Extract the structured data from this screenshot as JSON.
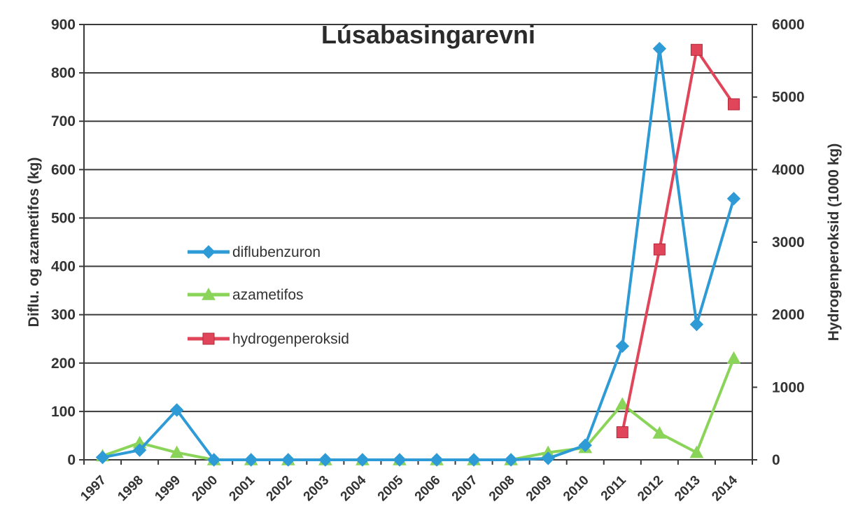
{
  "chart_data": {
    "type": "line",
    "title": "Lúsabasingarevni",
    "ylabel": "Diflu. og azametifos (kg)",
    "y2label": "Hydrogenperoksid (1000 kg)",
    "x": [
      "1997",
      "1998",
      "1999",
      "2000",
      "2001",
      "2002",
      "2003",
      "2004",
      "2005",
      "2006",
      "2007",
      "2008",
      "2009",
      "2010",
      "2011",
      "2012",
      "2013",
      "2014"
    ],
    "ylim": [
      0,
      900
    ],
    "y2lim": [
      0,
      6000
    ],
    "yticks": [
      "0",
      "100",
      "200",
      "300",
      "400",
      "500",
      "600",
      "700",
      "800",
      "900"
    ],
    "y2ticks": [
      "0",
      "1000",
      "2000",
      "3000",
      "4000",
      "5000",
      "6000"
    ],
    "grid": true,
    "legend_position": "center-left",
    "series": [
      {
        "name": "diflubenzuron",
        "axis": "left",
        "color": "#2e9bd6",
        "marker": "diamond",
        "values": [
          5,
          20,
          103,
          0,
          0,
          0,
          0,
          0,
          0,
          0,
          0,
          0,
          3,
          30,
          235,
          850,
          280,
          540
        ]
      },
      {
        "name": "azametifos",
        "axis": "left",
        "color": "#8bd45a",
        "marker": "triangle",
        "values": [
          8,
          35,
          15,
          0,
          0,
          0,
          0,
          0,
          0,
          0,
          0,
          0,
          15,
          25,
          115,
          55,
          15,
          210
        ]
      },
      {
        "name": "hydrogenperoksid",
        "axis": "right",
        "color": "#e0455a",
        "marker": "square",
        "values": [
          null,
          null,
          null,
          null,
          null,
          null,
          null,
          null,
          null,
          null,
          null,
          null,
          null,
          null,
          380,
          2900,
          5650,
          4900
        ]
      }
    ]
  }
}
